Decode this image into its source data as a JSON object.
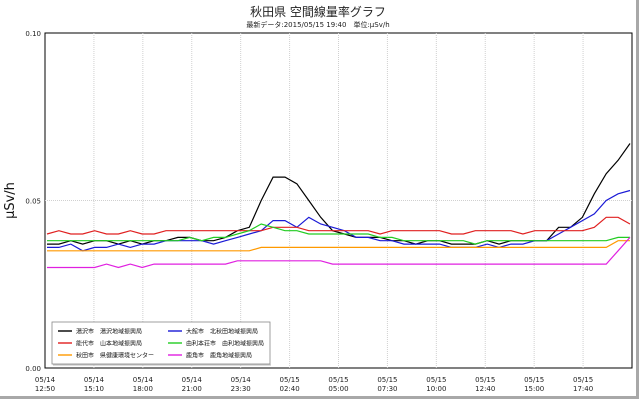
{
  "chart_data": {
    "type": "line",
    "title": "秋田県 空間線量率グラフ",
    "subtitle": "最新データ:2015/05/15 19:40　単位:μSv/h",
    "ylabel": "μSv/h",
    "xlabel": "",
    "ylim": [
      0,
      0.1
    ],
    "yticks": [
      "0.00",
      "0.05",
      "0.10"
    ],
    "grid": true,
    "legend_position": "bottom-left",
    "x_ticks": [
      {
        "date": "05/14",
        "time": "12:50"
      },
      {
        "date": "05/14",
        "time": "15:10"
      },
      {
        "date": "05/14",
        "time": "18:00"
      },
      {
        "date": "05/14",
        "time": "21:00"
      },
      {
        "date": "05/14",
        "time": "23:30"
      },
      {
        "date": "05/15",
        "time": "02:40"
      },
      {
        "date": "05/15",
        "time": "05:00"
      },
      {
        "date": "05/15",
        "time": "07:30"
      },
      {
        "date": "05/15",
        "time": "10:00"
      },
      {
        "date": "05/15",
        "time": "12:40"
      },
      {
        "date": "05/15",
        "time": "15:00"
      },
      {
        "date": "05/15",
        "time": "17:40"
      }
    ],
    "series": [
      {
        "name": "湯沢市　湯沢地域振興局",
        "color": "#000000",
        "values": [
          0.037,
          0.037,
          0.038,
          0.037,
          0.038,
          0.038,
          0.037,
          0.038,
          0.037,
          0.038,
          0.038,
          0.039,
          0.039,
          0.038,
          0.038,
          0.039,
          0.041,
          0.042,
          0.05,
          0.057,
          0.057,
          0.055,
          0.05,
          0.045,
          0.041,
          0.04,
          0.039,
          0.039,
          0.039,
          0.038,
          0.038,
          0.037,
          0.038,
          0.038,
          0.037,
          0.037,
          0.037,
          0.038,
          0.037,
          0.038,
          0.038,
          0.038,
          0.038,
          0.042,
          0.042,
          0.045,
          0.052,
          0.058,
          0.062,
          0.067
        ]
      },
      {
        "name": "大館市　北秋田地域振興局",
        "color": "#1a1ad6",
        "values": [
          0.036,
          0.036,
          0.037,
          0.035,
          0.036,
          0.036,
          0.037,
          0.036,
          0.037,
          0.037,
          0.038,
          0.038,
          0.038,
          0.038,
          0.037,
          0.038,
          0.039,
          0.04,
          0.041,
          0.044,
          0.044,
          0.042,
          0.045,
          0.043,
          0.042,
          0.041,
          0.039,
          0.039,
          0.038,
          0.038,
          0.037,
          0.037,
          0.037,
          0.037,
          0.036,
          0.036,
          0.036,
          0.037,
          0.036,
          0.037,
          0.037,
          0.038,
          0.038,
          0.04,
          0.042,
          0.044,
          0.046,
          0.05,
          0.052,
          0.053
        ]
      },
      {
        "name": "能代市　山本地域振興局",
        "color": "#e02020",
        "values": [
          0.04,
          0.041,
          0.04,
          0.04,
          0.041,
          0.04,
          0.04,
          0.041,
          0.04,
          0.04,
          0.041,
          0.041,
          0.041,
          0.041,
          0.041,
          0.041,
          0.041,
          0.041,
          0.041,
          0.042,
          0.042,
          0.042,
          0.041,
          0.041,
          0.041,
          0.041,
          0.041,
          0.041,
          0.04,
          0.041,
          0.041,
          0.041,
          0.041,
          0.041,
          0.04,
          0.04,
          0.041,
          0.041,
          0.041,
          0.041,
          0.04,
          0.041,
          0.041,
          0.041,
          0.041,
          0.041,
          0.042,
          0.045,
          0.045,
          0.043
        ]
      },
      {
        "name": "由利本荘市　由利地域振興局",
        "color": "#22cc22",
        "values": [
          0.038,
          0.038,
          0.038,
          0.038,
          0.038,
          0.038,
          0.038,
          0.038,
          0.038,
          0.038,
          0.038,
          0.038,
          0.039,
          0.038,
          0.039,
          0.039,
          0.04,
          0.041,
          0.043,
          0.042,
          0.041,
          0.041,
          0.04,
          0.04,
          0.04,
          0.04,
          0.04,
          0.04,
          0.039,
          0.039,
          0.038,
          0.038,
          0.038,
          0.038,
          0.038,
          0.038,
          0.037,
          0.038,
          0.038,
          0.038,
          0.038,
          0.038,
          0.038,
          0.038,
          0.038,
          0.038,
          0.038,
          0.038,
          0.039,
          0.039
        ]
      },
      {
        "name": "秋田市　県健康環境センター",
        "color": "#ff9900",
        "values": [
          0.035,
          0.035,
          0.035,
          0.035,
          0.035,
          0.035,
          0.035,
          0.035,
          0.035,
          0.035,
          0.035,
          0.035,
          0.035,
          0.035,
          0.035,
          0.035,
          0.035,
          0.035,
          0.036,
          0.036,
          0.036,
          0.036,
          0.036,
          0.036,
          0.036,
          0.036,
          0.036,
          0.036,
          0.036,
          0.036,
          0.036,
          0.036,
          0.036,
          0.036,
          0.036,
          0.036,
          0.036,
          0.036,
          0.036,
          0.036,
          0.036,
          0.036,
          0.036,
          0.036,
          0.036,
          0.036,
          0.036,
          0.036,
          0.038,
          0.038
        ]
      },
      {
        "name": "鹿角市　鹿角地域振興局",
        "color": "#e020e0",
        "values": [
          0.03,
          0.03,
          0.03,
          0.03,
          0.03,
          0.031,
          0.03,
          0.031,
          0.03,
          0.031,
          0.031,
          0.031,
          0.031,
          0.031,
          0.031,
          0.031,
          0.032,
          0.032,
          0.032,
          0.032,
          0.032,
          0.032,
          0.032,
          0.032,
          0.031,
          0.031,
          0.031,
          0.031,
          0.031,
          0.031,
          0.031,
          0.031,
          0.031,
          0.031,
          0.031,
          0.031,
          0.031,
          0.031,
          0.031,
          0.031,
          0.031,
          0.031,
          0.031,
          0.031,
          0.031,
          0.031,
          0.031,
          0.031,
          0.035,
          0.039
        ]
      }
    ]
  }
}
